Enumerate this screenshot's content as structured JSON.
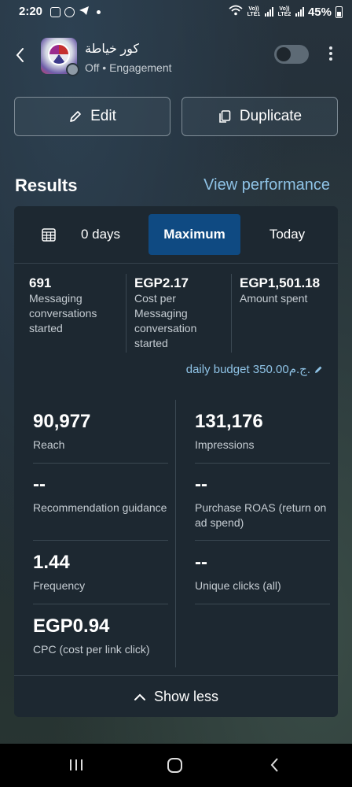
{
  "status_bar": {
    "time": "2:20",
    "net1": "Vo)) LTE1",
    "net2": "Vo)) LTE2",
    "battery": "45%"
  },
  "header": {
    "title": "كور خياطة",
    "subtitle": "Off • Engagement",
    "toggle_on": false
  },
  "actions": {
    "edit_label": "Edit",
    "duplicate_label": "Duplicate"
  },
  "results": {
    "heading": "Results",
    "view_link": "View performance"
  },
  "tabs": {
    "days": "0 days",
    "maximum": "Maximum",
    "today": "Today",
    "selected": "maximum"
  },
  "summary": [
    {
      "value": "691",
      "label": "Messaging conversations started"
    },
    {
      "value": "EGP2.17",
      "label": "Cost per Messaging conversation started"
    },
    {
      "value": "EGP1,501.18",
      "label": "Amount spent"
    }
  ],
  "budget": "daily budget 350.00ج.م.",
  "metrics": [
    {
      "value": "90,977",
      "label": "Reach"
    },
    {
      "value": "131,176",
      "label": "Impressions"
    },
    {
      "value": "--",
      "label": "Recommendation guidance"
    },
    {
      "value": "--",
      "label": "Purchase ROAS (return on ad spend)"
    },
    {
      "value": "1.44",
      "label": "Frequency"
    },
    {
      "value": "--",
      "label": "Unique clicks (all)"
    },
    {
      "value": "EGP0.94",
      "label": "CPC (cost per link click)"
    }
  ],
  "show_less": "Show less",
  "colors": {
    "accent_link": "#8fc3e6",
    "selected_tab": "#0f4a82",
    "card_bg": "#1d2831"
  }
}
